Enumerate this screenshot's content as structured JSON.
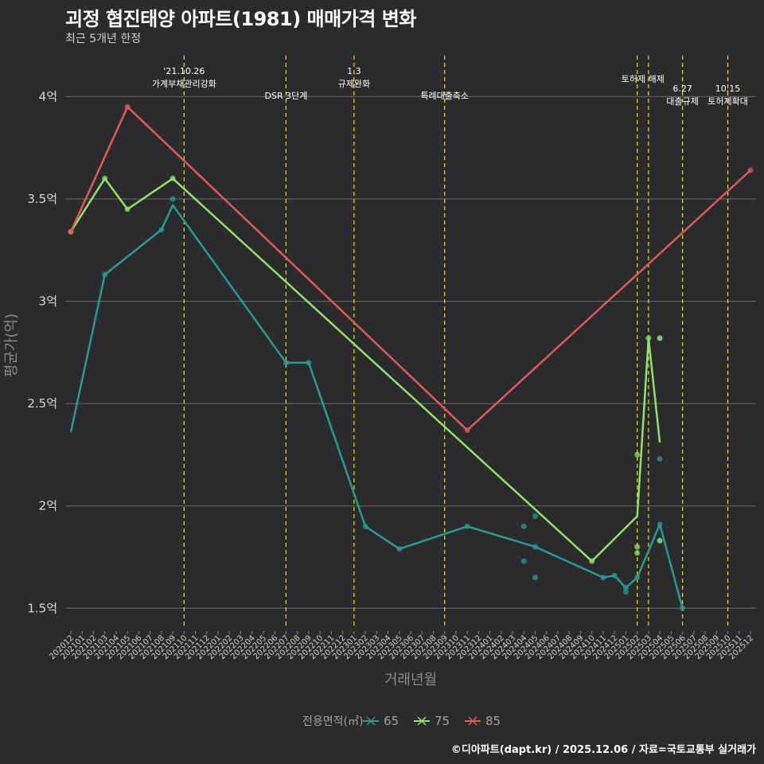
{
  "header": {
    "title": "괴정 협진태양 아파트(1981) 매매가격 변화",
    "subtitle": "최근 5개년 한정"
  },
  "caption": "©디아파트(dapt.kr) / 2025.12.06 / 자료=국토교통부 실거래가",
  "colors": {
    "background": "#2b2a2c",
    "grid": "#6b6b6b",
    "event_line": "#e6e600",
    "s65": "#2a9a95",
    "s75": "#8fe36a",
    "s85": "#e05a5a"
  },
  "chart_data": {
    "type": "line",
    "xlabel": "거래년월",
    "ylabel": "평균가(억)",
    "ylim": [
      1.4,
      4.2
    ],
    "y_ticks": [
      {
        "value": 1.5,
        "label": "1.5억"
      },
      {
        "value": 2.0,
        "label": "2억"
      },
      {
        "value": 2.5,
        "label": "2.5억"
      },
      {
        "value": 3.0,
        "label": "3억"
      },
      {
        "value": 3.5,
        "label": "3.5억"
      },
      {
        "value": 4.0,
        "label": "4억"
      }
    ],
    "categories": [
      "202012",
      "202101",
      "202102",
      "202103",
      "202104",
      "202105",
      "202106",
      "202107",
      "202108",
      "202109",
      "202110",
      "202111",
      "202112",
      "202201",
      "202202",
      "202203",
      "202204",
      "202205",
      "202206",
      "202207",
      "202208",
      "202209",
      "202210",
      "202211",
      "202212",
      "202301",
      "202302",
      "202303",
      "202304",
      "202305",
      "202306",
      "202307",
      "202308",
      "202309",
      "202310",
      "202311",
      "202312",
      "202401",
      "202402",
      "202403",
      "202404",
      "202405",
      "202406",
      "202407",
      "202408",
      "202409",
      "202410",
      "202411",
      "202412",
      "202501",
      "202502",
      "202503",
      "202504",
      "202505",
      "202506",
      "202507",
      "202508",
      "202509",
      "202510",
      "202511",
      "202512"
    ],
    "legend_title": "전용면적(㎡)",
    "series": [
      {
        "name": "65",
        "color_key": "s65",
        "line": [
          [
            "202012",
            2.36
          ],
          [
            "202103",
            3.13
          ],
          [
            "202108",
            3.35
          ],
          [
            "202109",
            3.47
          ],
          [
            "202207",
            2.7
          ],
          [
            "202209",
            2.7
          ],
          [
            "202302",
            1.9
          ],
          [
            "202305",
            1.79
          ],
          [
            "202311",
            1.9
          ],
          [
            "202405",
            1.8
          ],
          [
            "202411",
            1.65
          ],
          [
            "202412",
            1.66
          ],
          [
            "202501",
            1.6
          ],
          [
            "202502",
            1.65
          ],
          [
            "202504",
            1.91
          ],
          [
            "202506",
            1.5
          ]
        ],
        "points": [
          [
            "202103",
            3.13
          ],
          [
            "202108",
            3.35
          ],
          [
            "202109",
            3.5
          ],
          [
            "202207",
            2.7
          ],
          [
            "202209",
            2.7
          ],
          [
            "202302",
            1.9
          ],
          [
            "202305",
            1.79
          ],
          [
            "202311",
            1.9
          ],
          [
            "202404",
            1.9
          ],
          [
            "202404",
            1.73
          ],
          [
            "202405",
            1.95
          ],
          [
            "202405",
            1.8
          ],
          [
            "202405",
            1.65
          ],
          [
            "202411",
            1.65
          ],
          [
            "202412",
            1.66
          ],
          [
            "202501",
            1.6
          ],
          [
            "202501",
            1.58
          ],
          [
            "202502",
            1.65
          ],
          [
            "202504",
            1.91
          ],
          [
            "202504",
            1.83
          ],
          [
            "202504",
            2.23
          ],
          [
            "202504",
            2.82
          ],
          [
            "202506",
            1.5
          ]
        ]
      },
      {
        "name": "75",
        "color_key": "s75",
        "line": [
          [
            "202012",
            3.34
          ],
          [
            "202103",
            3.6
          ],
          [
            "202105",
            3.45
          ],
          [
            "202109",
            3.6
          ],
          [
            "202410",
            1.73
          ],
          [
            "202502",
            1.95
          ],
          [
            "202503",
            2.82
          ],
          [
            "202504",
            2.31
          ]
        ],
        "points": [
          [
            "202012",
            3.34
          ],
          [
            "202103",
            3.6
          ],
          [
            "202105",
            3.45
          ],
          [
            "202109",
            3.6
          ],
          [
            "202410",
            1.73
          ],
          [
            "202502",
            2.25
          ],
          [
            "202502",
            1.8
          ],
          [
            "202502",
            1.77
          ],
          [
            "202503",
            2.82
          ],
          [
            "202504",
            2.82
          ],
          [
            "202504",
            1.83
          ]
        ]
      },
      {
        "name": "85",
        "color_key": "s85",
        "line": [
          [
            "202012",
            3.34
          ],
          [
            "202105",
            3.95
          ],
          [
            "202311",
            2.37
          ],
          [
            "202512",
            3.64
          ]
        ],
        "points": [
          [
            "202012",
            3.34
          ],
          [
            "202105",
            3.95
          ],
          [
            "202311",
            2.37
          ],
          [
            "202512",
            3.64
          ]
        ]
      }
    ],
    "events": [
      {
        "x": "202110",
        "labels": [
          "'21.10.26",
          "가계부채관리강화"
        ],
        "row": 0
      },
      {
        "x": "202207",
        "labels": [
          "DSR 3단계"
        ],
        "row": 1
      },
      {
        "x": "202301",
        "labels": [
          "1.3",
          "규제완화"
        ],
        "row": 0
      },
      {
        "x": "202309",
        "labels": [
          "특례대출축소"
        ],
        "row": 1
      },
      {
        "x": "202502",
        "labels": [
          "토허제 해제"
        ],
        "row": 0,
        "anchor_between": "202503"
      },
      {
        "x": "202503",
        "labels": [],
        "row": 0
      },
      {
        "x": "202506",
        "labels": [
          "6.27",
          "대출규제"
        ],
        "row": 1
      },
      {
        "x": "202510",
        "labels": [
          "10.15",
          "토허제확대"
        ],
        "row": 1
      }
    ]
  }
}
